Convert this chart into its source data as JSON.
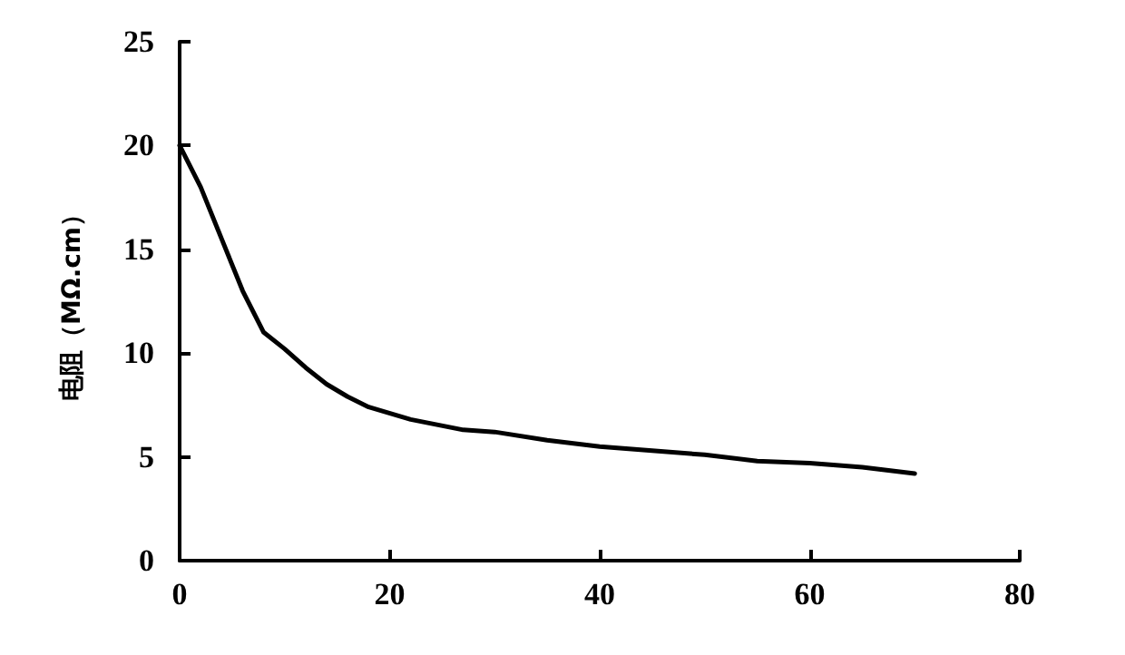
{
  "chart_data": {
    "type": "line",
    "ylabel": "电阻（MΩ.cm）",
    "x": [
      0,
      2,
      4,
      6,
      8,
      10,
      12,
      14,
      16,
      18,
      22,
      27,
      30,
      35,
      40,
      45,
      50,
      55,
      60,
      65,
      70
    ],
    "series": [
      {
        "color": "#000000",
        "values": [
          20,
          18,
          15.5,
          13,
          11,
          10.2,
          9.3,
          8.5,
          7.9,
          7.4,
          6.8,
          6.3,
          6.2,
          5.8,
          5.5,
          5.3,
          5.1,
          4.8,
          4.7,
          4.5,
          4.2
        ]
      }
    ],
    "xlim": [
      0,
      80
    ],
    "xticks": [
      0,
      20,
      40,
      60,
      80
    ],
    "ylim": [
      0,
      25
    ],
    "yticks": [
      0,
      5,
      10,
      15,
      20,
      25
    ],
    "grid": false,
    "marker": "none",
    "line_style": "solid"
  }
}
